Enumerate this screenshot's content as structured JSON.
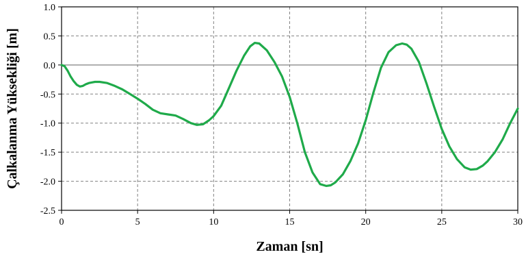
{
  "chart_data": {
    "type": "line",
    "xlabel": "Zaman [sn]",
    "ylabel": "Çalkalanma Yüksekliği [m]",
    "xlim": [
      0,
      30
    ],
    "ylim": [
      -2.5,
      1.0
    ],
    "xticks": [
      0,
      5,
      10,
      15,
      20,
      25,
      30
    ],
    "yticks": [
      1.0,
      0.5,
      0.0,
      -0.5,
      -1.0,
      -1.5,
      -2.0,
      -2.5
    ],
    "xtick_labels": [
      "0",
      "5",
      "10",
      "15",
      "20",
      "25",
      "30"
    ],
    "ytick_labels": [
      "1.0",
      "0.5",
      "0.0",
      "-0.5",
      "-1.0",
      "-1.5",
      "-2.0",
      "-2.5"
    ],
    "grid": true,
    "line_color": "#1faa4a",
    "series": [
      {
        "x": [
          0,
          0.2,
          0.4,
          0.6,
          0.8,
          1.0,
          1.2,
          1.4,
          1.6,
          1.8,
          2.0,
          2.2,
          2.5,
          3.0,
          3.5,
          4.0,
          4.5,
          5.0,
          5.5,
          6.0,
          6.5,
          7.0,
          7.5,
          8.0,
          8.5,
          8.9,
          9.3,
          9.7,
          10.0,
          10.5,
          11.0,
          11.5,
          12.0,
          12.4,
          12.7,
          13.0,
          13.5,
          14.0,
          14.5,
          15.0,
          15.5,
          16.0,
          16.5,
          17.0,
          17.4,
          17.7,
          18.0,
          18.5,
          19.0,
          19.5,
          20.0,
          20.5,
          21.0,
          21.5,
          22.0,
          22.4,
          22.7,
          23.0,
          23.5,
          24.0,
          24.5,
          25.0,
          25.5,
          26.0,
          26.5,
          26.9,
          27.3,
          27.7,
          28.0,
          28.5,
          29.0,
          29.5,
          30.0
        ],
        "y": [
          0.0,
          -0.02,
          -0.1,
          -0.2,
          -0.28,
          -0.34,
          -0.37,
          -0.36,
          -0.33,
          -0.31,
          -0.3,
          -0.29,
          -0.29,
          -0.31,
          -0.36,
          -0.42,
          -0.5,
          -0.58,
          -0.67,
          -0.77,
          -0.83,
          -0.85,
          -0.87,
          -0.93,
          -1.0,
          -1.03,
          -1.02,
          -0.95,
          -0.88,
          -0.7,
          -0.4,
          -0.1,
          0.16,
          0.32,
          0.38,
          0.37,
          0.25,
          0.05,
          -0.2,
          -0.55,
          -1.0,
          -1.5,
          -1.85,
          -2.05,
          -2.08,
          -2.07,
          -2.02,
          -1.88,
          -1.65,
          -1.35,
          -0.95,
          -0.48,
          -0.05,
          0.22,
          0.34,
          0.37,
          0.35,
          0.28,
          0.05,
          -0.32,
          -0.72,
          -1.1,
          -1.4,
          -1.62,
          -1.76,
          -1.8,
          -1.79,
          -1.73,
          -1.66,
          -1.5,
          -1.28,
          -1.0,
          -0.75
        ]
      }
    ]
  }
}
